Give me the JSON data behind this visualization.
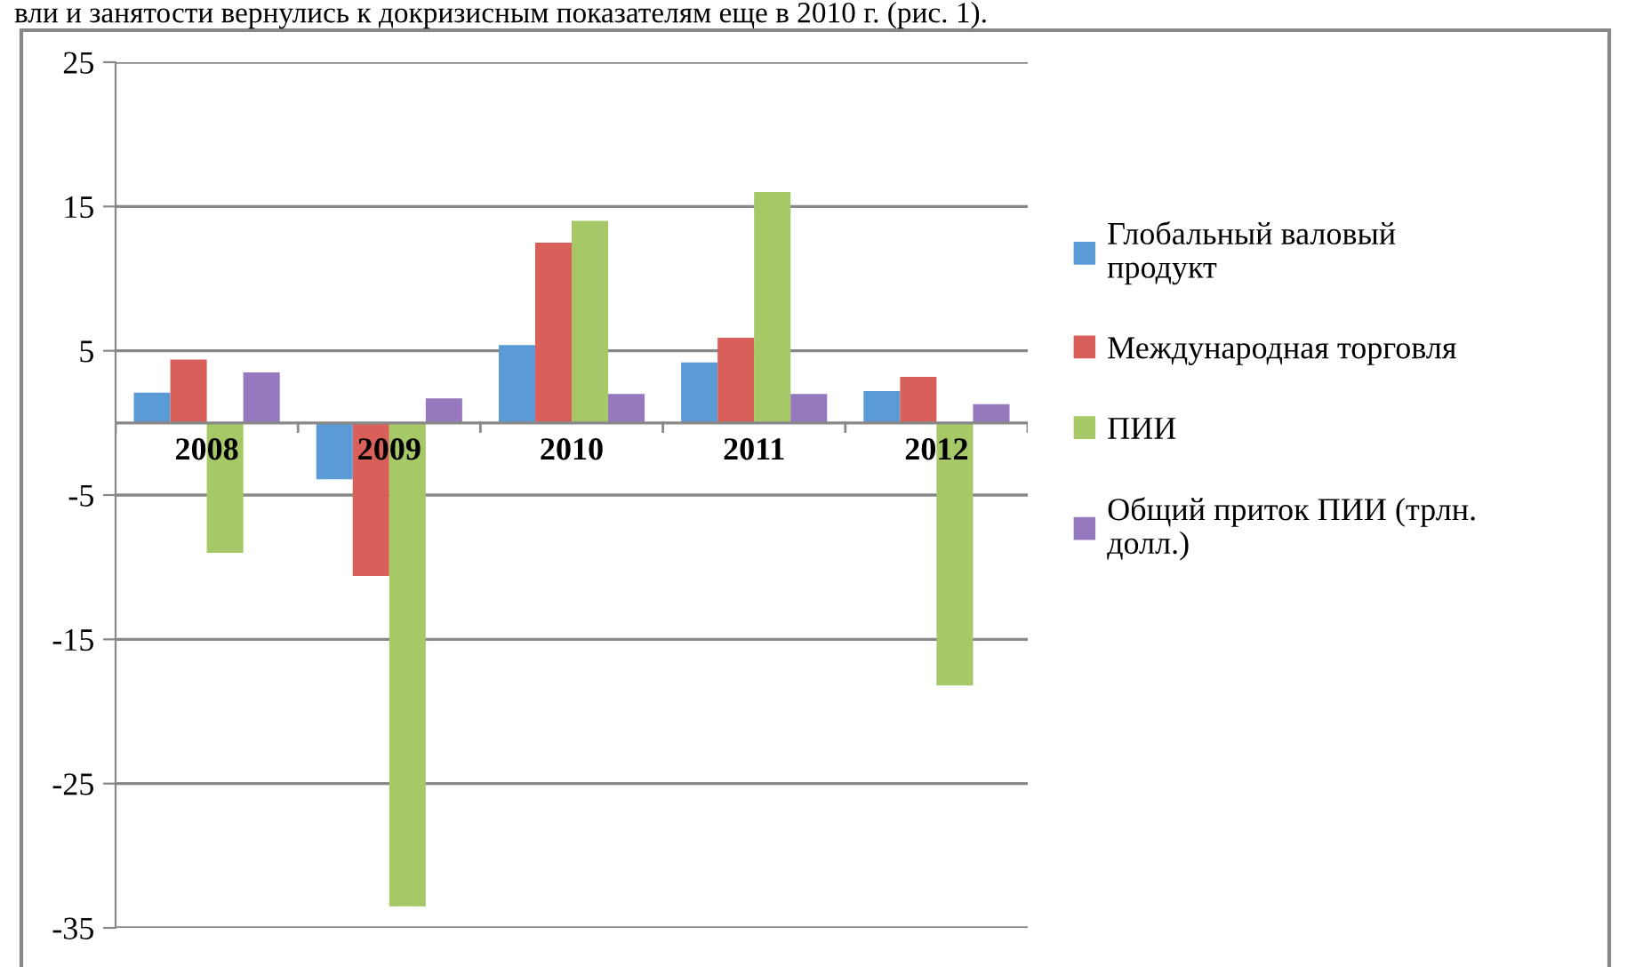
{
  "chart_data": {
    "type": "bar",
    "annotations": [
      "вли и занятости вернулись к докризисным показателям еще в 2010 г. (рис. 1)."
    ],
    "categories": [
      "2008",
      "2009",
      "2010",
      "2011",
      "2012"
    ],
    "series": [
      {
        "name": "Глобальный валовый продукт",
        "color": "#5b9bd5",
        "values": [
          2.1,
          -3.9,
          5.4,
          4.2,
          2.2
        ]
      },
      {
        "name": "Международная торговля",
        "color": "#d9605a",
        "values": [
          4.4,
          -10.6,
          12.5,
          5.9,
          3.2
        ]
      },
      {
        "name": "ПИИ",
        "color": "#a6c866",
        "values": [
          -9.0,
          -33.5,
          14.0,
          16.0,
          -18.2
        ]
      },
      {
        "name": "Общий приток ПИИ (трлн. долл.)",
        "color": "#9578bd",
        "values": [
          3.5,
          1.7,
          2.0,
          2.0,
          1.3
        ]
      }
    ],
    "ylim": [
      -35,
      25
    ],
    "yticks": [
      -35,
      -25,
      -15,
      -5,
      5,
      15,
      25
    ],
    "grid": "y",
    "legend": "right"
  }
}
